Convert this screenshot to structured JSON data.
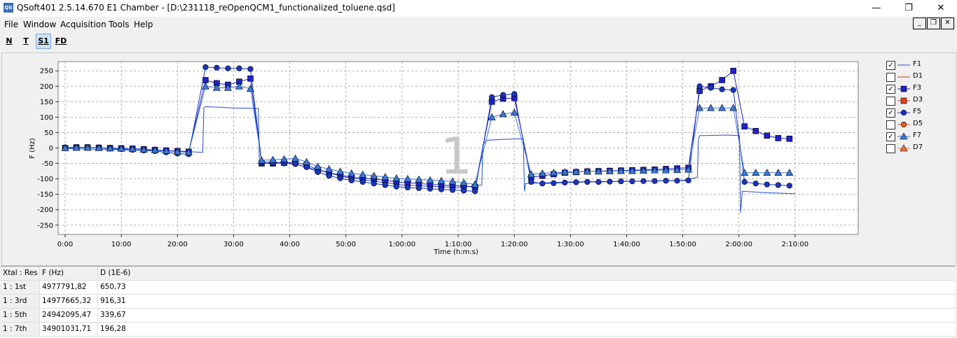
{
  "window": {
    "icon_text": "QS",
    "title": "QSoft401 2.5.14.670  E1 Chamber - [D:\\231118_reOpenQCM1_functionalized_toluene.qsd]",
    "minimize": "—",
    "maximize": "❐",
    "close": "✕"
  },
  "menu": {
    "items": [
      "File",
      "Window",
      "Acquisition",
      "Tools",
      "Help"
    ]
  },
  "mdi": {
    "minimize": "_",
    "restore": "❐",
    "close": "✕"
  },
  "toolbar": {
    "buttons": [
      "N",
      "T",
      "S1",
      "FD"
    ],
    "active": "S1"
  },
  "chart_data": {
    "type": "line",
    "title": "",
    "xlabel": "Time (h:m:s)",
    "ylabel": "F (Hz)",
    "watermark": "1",
    "xlim_min": [
      0,
      140
    ],
    "ylim": [
      -280,
      280
    ],
    "grid": true,
    "legend_placement": "right",
    "x_ticks": [
      "0:00",
      "10:00",
      "20:00",
      "30:00",
      "40:00",
      "50:00",
      "1:00:00",
      "1:10:00",
      "1:20:00",
      "1:30:00",
      "1:40:00",
      "1:50:00",
      "2:00:00",
      "2:10:00"
    ],
    "x_tick_values": [
      0,
      10,
      20,
      30,
      40,
      50,
      60,
      70,
      80,
      90,
      100,
      110,
      120,
      130
    ],
    "y_ticks": [
      "250",
      "200",
      "150",
      "100",
      "50",
      "0",
      "-50",
      "-100",
      "-150",
      "-200",
      "-250"
    ],
    "y_tick_values": [
      250,
      200,
      150,
      100,
      50,
      0,
      -50,
      -100,
      -150,
      -200,
      -250
    ],
    "series": [
      {
        "name": "F1",
        "color": "#1f4fd0",
        "marker": "none",
        "line": true,
        "x": [
          0,
          20,
          24.5,
          24.7,
          25,
          30,
          34.4,
          34.6,
          35,
          40,
          50,
          60,
          70,
          74.2,
          74.4,
          75,
          78,
          81.6,
          81.8,
          82,
          90,
          100,
          110,
          112.6,
          112.8,
          113,
          118,
          120.1,
          120.3,
          120.6,
          125,
          130
        ],
        "y": [
          -2,
          -10,
          -14,
          130,
          134,
          130,
          128,
          -50,
          -45,
          -48,
          -95,
          -120,
          -128,
          -120,
          10,
          25,
          28,
          30,
          -140,
          -115,
          -110,
          -108,
          -105,
          -95,
          30,
          40,
          42,
          40,
          -210,
          -140,
          -145,
          -148
        ]
      },
      {
        "name": "F3",
        "color": "#2020c8",
        "marker": "square",
        "line": true,
        "x": [
          0,
          2,
          4,
          6,
          8,
          10,
          12,
          14,
          16,
          18,
          20,
          22,
          25,
          27,
          29,
          31,
          33,
          35,
          37,
          39,
          41,
          43,
          45,
          47,
          49,
          51,
          53,
          55,
          57,
          59,
          61,
          63,
          65,
          67,
          69,
          71,
          73,
          76,
          78,
          80,
          83,
          85,
          87,
          89,
          91,
          93,
          95,
          97,
          99,
          101,
          103,
          105,
          107,
          109,
          111,
          113,
          115,
          117,
          119,
          121,
          123,
          125,
          127,
          129
        ],
        "y": [
          0,
          2,
          2,
          1,
          0,
          -1,
          -2,
          -4,
          -6,
          -8,
          -10,
          -12,
          220,
          210,
          205,
          215,
          225,
          -50,
          -50,
          -48,
          -46,
          -55,
          -70,
          -80,
          -88,
          -95,
          -98,
          -100,
          -105,
          -110,
          -113,
          -115,
          -118,
          -120,
          -122,
          -124,
          -126,
          150,
          160,
          162,
          -95,
          -90,
          -85,
          -80,
          -78,
          -76,
          -75,
          -74,
          -73,
          -72,
          -71,
          -70,
          -68,
          -66,
          -64,
          185,
          200,
          220,
          250,
          70,
          55,
          40,
          32,
          30
        ]
      },
      {
        "name": "F5",
        "color": "#1a35c0",
        "marker": "circle",
        "line": true,
        "x": [
          0,
          2,
          4,
          6,
          8,
          10,
          12,
          14,
          16,
          18,
          20,
          22,
          25,
          27,
          29,
          31,
          33,
          35,
          37,
          39,
          41,
          43,
          45,
          47,
          49,
          51,
          53,
          55,
          57,
          59,
          61,
          63,
          65,
          67,
          69,
          71,
          73,
          76,
          78,
          80,
          83,
          85,
          87,
          89,
          91,
          93,
          95,
          97,
          99,
          101,
          103,
          105,
          107,
          109,
          111,
          113,
          115,
          117,
          119,
          121,
          123,
          125,
          127,
          129
        ],
        "y": [
          2,
          3,
          2,
          0,
          -2,
          -4,
          -6,
          -8,
          -10,
          -14,
          -18,
          -20,
          262,
          260,
          258,
          258,
          256,
          -45,
          -48,
          -50,
          -52,
          -62,
          -78,
          -90,
          -98,
          -105,
          -110,
          -115,
          -120,
          -125,
          -128,
          -130,
          -132,
          -134,
          -136,
          -138,
          -140,
          165,
          172,
          175,
          -110,
          -115,
          -114,
          -112,
          -111,
          -110,
          -110,
          -109,
          -108,
          -108,
          -107,
          -107,
          -106,
          -106,
          -105,
          200,
          195,
          190,
          188,
          -110,
          -115,
          -118,
          -120,
          -122
        ]
      },
      {
        "name": "F7",
        "color": "#3a78d8",
        "marker": "triangle",
        "line": true,
        "x": [
          0,
          2,
          4,
          6,
          8,
          10,
          12,
          14,
          16,
          18,
          20,
          22,
          25,
          27,
          29,
          31,
          33,
          35,
          37,
          39,
          41,
          43,
          45,
          47,
          49,
          51,
          53,
          55,
          57,
          59,
          61,
          63,
          65,
          67,
          69,
          71,
          73,
          76,
          78,
          80,
          83,
          85,
          87,
          89,
          91,
          93,
          95,
          97,
          99,
          101,
          103,
          105,
          107,
          109,
          111,
          113,
          115,
          117,
          119,
          121,
          123,
          125,
          127,
          129
        ],
        "y": [
          0,
          1,
          1,
          0,
          -1,
          -2,
          -3,
          -5,
          -7,
          -9,
          -12,
          -14,
          200,
          195,
          195,
          200,
          192,
          -40,
          -38,
          -36,
          -34,
          -45,
          -60,
          -68,
          -76,
          -82,
          -86,
          -90,
          -94,
          -98,
          -100,
          -102,
          -104,
          -106,
          -108,
          -112,
          -118,
          100,
          110,
          115,
          -85,
          -82,
          -80,
          -78,
          -77,
          -76,
          -76,
          -75,
          -74,
          -74,
          -73,
          -72,
          -72,
          -71,
          -70,
          130,
          130,
          130,
          130,
          -80,
          -80,
          -80,
          -80,
          -80
        ]
      }
    ]
  },
  "legend": {
    "items": [
      {
        "label": "F1",
        "checked": true,
        "color": "#1f4fd0",
        "marker": "line"
      },
      {
        "label": "D1",
        "checked": false,
        "color": "#d03020",
        "marker": "line"
      },
      {
        "label": "F3",
        "checked": true,
        "color": "#2020c8",
        "marker": "square"
      },
      {
        "label": "D3",
        "checked": false,
        "color": "#e04020",
        "marker": "square"
      },
      {
        "label": "F5",
        "checked": true,
        "color": "#1a35c0",
        "marker": "circle"
      },
      {
        "label": "D5",
        "checked": false,
        "color": "#e06020",
        "marker": "circle"
      },
      {
        "label": "F7",
        "checked": true,
        "color": "#3a78d8",
        "marker": "triangle"
      },
      {
        "label": "D7",
        "checked": false,
        "color": "#f07040",
        "marker": "triangle"
      }
    ]
  },
  "table": {
    "headers": [
      "Xtal : Res",
      "F (Hz)",
      "D (1E-6)"
    ],
    "rows": [
      [
        "1 : 1st",
        "4977791,82",
        "650,73"
      ],
      [
        "1 : 3rd",
        "14977665,32",
        "916,31"
      ],
      [
        "1 : 5th",
        "24942095,47",
        "339,67"
      ],
      [
        "1 : 7th",
        "34901031,71",
        "196,28"
      ]
    ]
  }
}
